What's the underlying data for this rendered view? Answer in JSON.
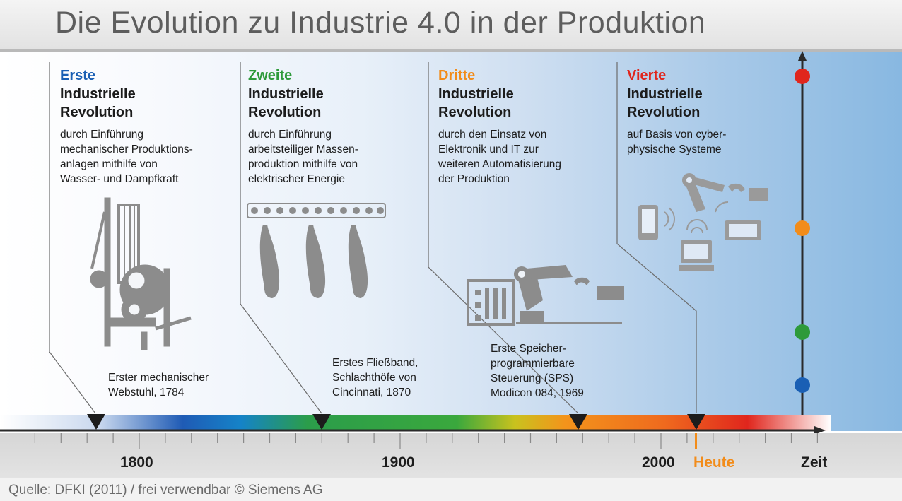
{
  "title": "Die Evolution zu Industrie 4.0 in der Produktion",
  "revolutions": [
    {
      "ordinal": "Erste",
      "heading_line1": "Industrielle",
      "heading_line2": "Revolution",
      "color": "#1a5fb4",
      "description": [
        "durch Einführung",
        "mechanischer Produktions-",
        "anlagen mithilfe von",
        "Wasser- und Dampfkraft"
      ],
      "milestone": [
        "Erster mechanischer",
        "Webstuhl, 1784"
      ]
    },
    {
      "ordinal": "Zweite",
      "heading_line1": "Industrielle",
      "heading_line2": "Revolution",
      "color": "#2e9a3a",
      "description": [
        "durch Einführung",
        "arbeitsteiliger Massen-",
        "produktion mithilfe von",
        "elektrischer Energie"
      ],
      "milestone": [
        "Erstes Fließband,",
        "Schlachthöfe von",
        "Cincinnati, 1870"
      ]
    },
    {
      "ordinal": "Dritte",
      "heading_line1": "Industrielle",
      "heading_line2": "Revolution",
      "color": "#f28c1a",
      "description": [
        "durch den Einsatz von",
        "Elektronik und IT zur",
        "weiteren Automatisierung",
        "der Produktion"
      ],
      "milestone": [
        "Erste Speicher-",
        "programmierbare",
        "Steuerung (SPS)",
        "Modicon 084, 1969"
      ]
    },
    {
      "ordinal": "Vierte",
      "heading_line1": "Industrielle",
      "heading_line2": "Revolution",
      "color": "#e0261d",
      "description": [
        "auf Basis von cyber-",
        "physische Systeme"
      ],
      "milestone": []
    }
  ],
  "timeline": {
    "years": [
      "1800",
      "1900",
      "2000"
    ],
    "today_label": "Heute",
    "axis_label": "Zeit",
    "today_color": "#f28c1a"
  },
  "source": "Quelle: DFKI (2011) / frei verwendbar © Siemens AG"
}
